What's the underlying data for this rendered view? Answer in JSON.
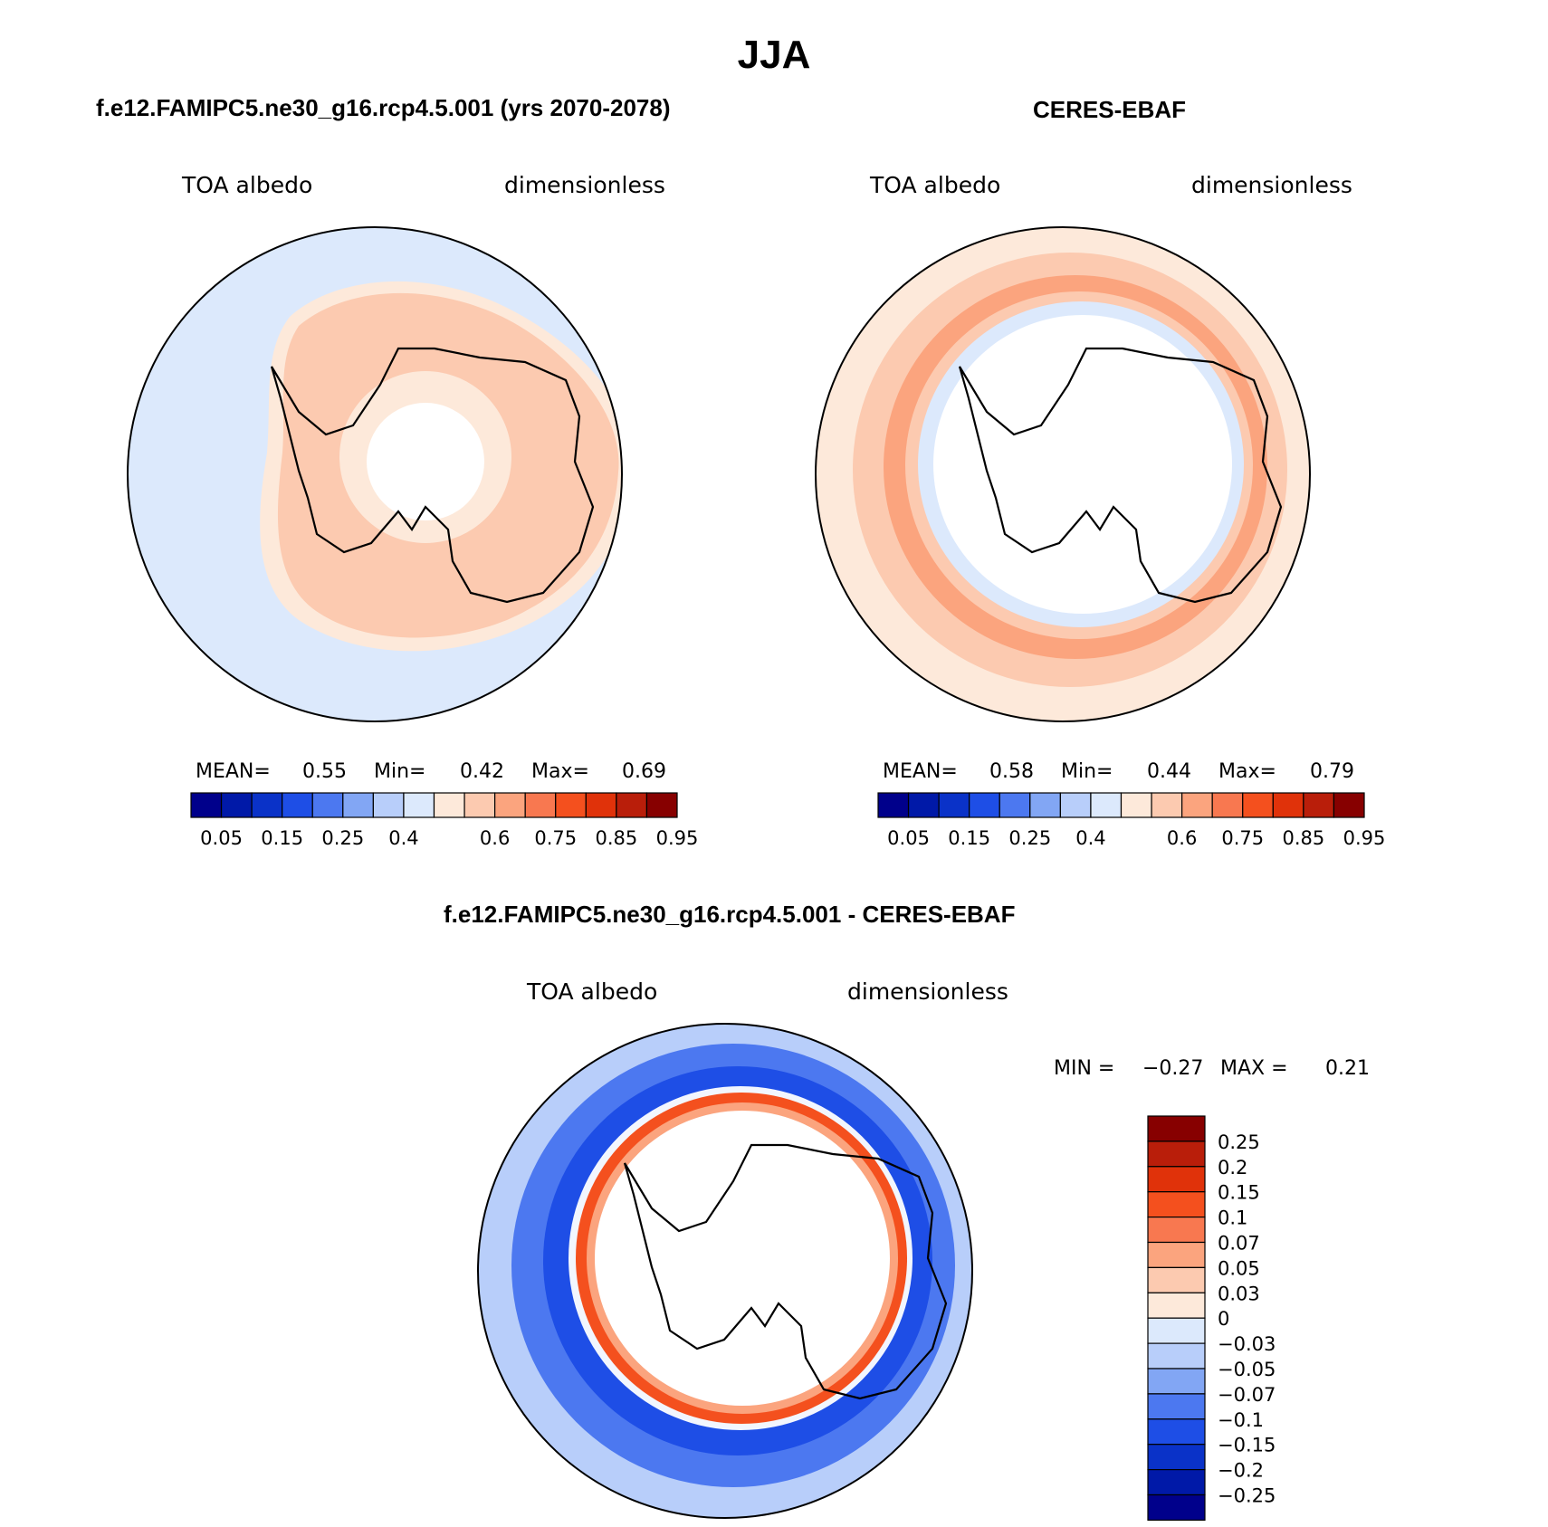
{
  "main_title": "JJA",
  "panels": {
    "model": {
      "title": "f.e12.FAMIPC5.ne30_g16.rcp4.5.001 (yrs 2070-2078)",
      "left_label": "TOA albedo",
      "right_label": "dimensionless",
      "stats": {
        "mean_label": "MEAN=",
        "mean": "0.55",
        "min_label": "Min=",
        "min": "0.42",
        "max_label": "Max=",
        "max": "0.69"
      }
    },
    "obs": {
      "title": "CERES-EBAF",
      "left_label": "TOA albedo",
      "right_label": "dimensionless",
      "stats": {
        "mean_label": "MEAN=",
        "mean": "0.58",
        "min_label": "Min=",
        "min": "0.44",
        "max_label": "Max=",
        "max": "0.79"
      }
    },
    "diff": {
      "title": "f.e12.FAMIPC5.ne30_g16.rcp4.5.001 - CERES-EBAF",
      "left_label": "TOA albedo",
      "right_label": "dimensionless",
      "stats": {
        "min_label": "MIN =",
        "min": "−0.27",
        "max_label": "MAX =",
        "max": "0.21"
      }
    }
  },
  "colorbars": {
    "abs": {
      "colors": [
        "#00008b",
        "#0019a8",
        "#0a32c8",
        "#1e4ee6",
        "#4c78f0",
        "#82a6f4",
        "#b8cefa",
        "#dce9fc",
        "#fde9da",
        "#fccab0",
        "#fba47e",
        "#f87850",
        "#f4501e",
        "#e0320a",
        "#b91e0a",
        "#870000"
      ],
      "ticks": [
        "0.05",
        "0.15",
        "0.25",
        "0.4",
        "0.6",
        "0.75",
        "0.85",
        "0.95"
      ]
    },
    "diff": {
      "colors": [
        "#870000",
        "#b91e0a",
        "#e0320a",
        "#f4501e",
        "#f87850",
        "#fba47e",
        "#fccab0",
        "#fde9da",
        "#dce9fc",
        "#b8cefa",
        "#82a6f4",
        "#4c78f0",
        "#1e4ee6",
        "#0a32c8",
        "#0019a8",
        "#00008b"
      ],
      "ticks": [
        "0.25",
        "0.2",
        "0.15",
        "0.1",
        "0.07",
        "0.05",
        "0.03",
        "0",
        "−0.03",
        "−0.05",
        "−0.07",
        "−0.1",
        "−0.15",
        "−0.2",
        "−0.25"
      ]
    }
  },
  "map_colors": {
    "ocean_model": "#dce9fc",
    "band_model_light": "#fde9da",
    "band_model": "#fccab0",
    "ring_obs_light": "#fde9da",
    "ring_obs": "#fccab0",
    "ring_obs_strong": "#fba47e",
    "diff_outer_light": "#b8cefa",
    "diff_mid": "#4c78f0",
    "diff_strong": "#1e4ee6",
    "diff_red": "#f4501e",
    "diff_red_light": "#fba47e"
  }
}
